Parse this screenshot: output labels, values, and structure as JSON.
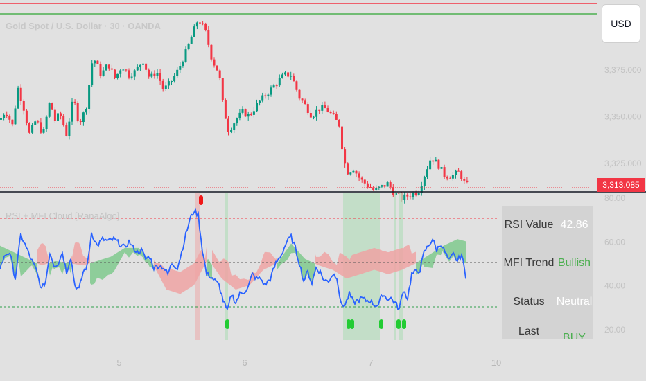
{
  "symbol_title": "Gold Spot / U.S. Dollar · 30 · OANDA",
  "currency_button": "USD",
  "current_price": "3,313.085",
  "indicator_title": "RSI + MFI Cloud [RanaAlgo]",
  "colors": {
    "bull": "#089981",
    "bear": "#f23645",
    "rsi": "#2962ff",
    "cloud_bull": "#7fc98d",
    "cloud_bear": "#eea3a3"
  },
  "stats": [
    {
      "label": "RSI Value",
      "value": "42.86",
      "value_color": "#ffffff"
    },
    {
      "label": "MFI Trend",
      "value": "Bullish",
      "value_color": "#4caf50"
    },
    {
      "label": "Status",
      "value": "Neutral",
      "value_color": "#ffffff"
    },
    {
      "label": "Last Signal",
      "value": "BUY",
      "value_color": "#4caf50"
    }
  ],
  "chart_data": [
    {
      "type": "candlestick",
      "title": "Gold Spot / U.S. Dollar · 30 · OANDA",
      "x_ticks": [
        "5",
        "6",
        "7",
        "10"
      ],
      "y_ticks": [
        "3,375.000",
        "3,350.000",
        "3,325.000"
      ],
      "ylim": [
        3305,
        3415
      ],
      "price_levels": [
        3413,
        3407
      ],
      "last_price": 3313.085,
      "close_anchors": [
        [
          0,
          3348
        ],
        [
          8,
          3353
        ],
        [
          18,
          3345
        ],
        [
          26,
          3365
        ],
        [
          36,
          3352
        ],
        [
          42,
          3340
        ],
        [
          52,
          3348
        ],
        [
          62,
          3340
        ],
        [
          72,
          3358
        ],
        [
          80,
          3347
        ],
        [
          86,
          3352
        ],
        [
          96,
          3340
        ],
        [
          106,
          3360
        ],
        [
          114,
          3346
        ],
        [
          124,
          3354
        ],
        [
          134,
          3382
        ],
        [
          146,
          3372
        ],
        [
          156,
          3378
        ],
        [
          166,
          3370
        ],
        [
          176,
          3377
        ],
        [
          186,
          3372
        ],
        [
          196,
          3374
        ],
        [
          206,
          3380
        ],
        [
          216,
          3370
        ],
        [
          226,
          3374
        ],
        [
          236,
          3364
        ],
        [
          246,
          3368
        ],
        [
          256,
          3374
        ],
        [
          266,
          3382
        ],
        [
          276,
          3392
        ],
        [
          286,
          3402
        ],
        [
          296,
          3396
        ],
        [
          306,
          3380
        ],
        [
          316,
          3373
        ],
        [
          322,
          3355
        ],
        [
          330,
          3342
        ],
        [
          340,
          3348
        ],
        [
          350,
          3352
        ],
        [
          360,
          3350
        ],
        [
          370,
          3356
        ],
        [
          380,
          3360
        ],
        [
          390,
          3364
        ],
        [
          400,
          3368
        ],
        [
          410,
          3372
        ],
        [
          420,
          3372
        ],
        [
          426,
          3366
        ],
        [
          432,
          3360
        ],
        [
          440,
          3356
        ],
        [
          450,
          3350
        ],
        [
          460,
          3354
        ],
        [
          470,
          3354
        ],
        [
          480,
          3350
        ],
        [
          490,
          3345
        ],
        [
          496,
          3326
        ],
        [
          502,
          3320
        ],
        [
          510,
          3322
        ],
        [
          520,
          3316
        ],
        [
          530,
          3313
        ],
        [
          540,
          3310
        ],
        [
          550,
          3312
        ],
        [
          560,
          3314
        ],
        [
          568,
          3309
        ],
        [
          580,
          3306
        ],
        [
          592,
          3308
        ],
        [
          604,
          3310
        ],
        [
          612,
          3318
        ],
        [
          622,
          3328
        ],
        [
          632,
          3324
        ],
        [
          642,
          3318
        ],
        [
          652,
          3318
        ],
        [
          662,
          3320
        ],
        [
          672,
          3313
        ]
      ]
    },
    {
      "type": "line",
      "title": "RSI + MFI Cloud [RanaAlgo]",
      "y_ticks": [
        "80.00",
        "60.00",
        "40.00",
        "20.00"
      ],
      "ylim": [
        20,
        80
      ],
      "levels": {
        "overbought": 70,
        "midline": 50,
        "oversold": 30
      },
      "series": [
        {
          "values_anchors": [
            [
              0,
              48
            ],
            [
              8,
              54
            ],
            [
              14,
              55
            ],
            [
              22,
              43
            ],
            [
              30,
              63
            ],
            [
              38,
              57
            ],
            [
              46,
              51
            ],
            [
              52,
              47
            ],
            [
              60,
              38
            ],
            [
              66,
              42
            ],
            [
              72,
              55
            ],
            [
              78,
              49
            ],
            [
              84,
              50
            ],
            [
              90,
              55
            ],
            [
              96,
              46
            ],
            [
              102,
              53
            ],
            [
              108,
              40
            ],
            [
              114,
              38
            ],
            [
              120,
              46
            ],
            [
              126,
              49
            ],
            [
              132,
              64
            ],
            [
              140,
              58
            ],
            [
              148,
              61
            ],
            [
              156,
              60
            ],
            [
              164,
              61
            ],
            [
              172,
              59
            ],
            [
              180,
              57
            ],
            [
              186,
              60
            ],
            [
              192,
              57
            ],
            [
              198,
              55
            ],
            [
              204,
              56
            ],
            [
              210,
              52
            ],
            [
              216,
              53
            ],
            [
              222,
              48
            ],
            [
              230,
              49
            ],
            [
              236,
              48
            ],
            [
              242,
              45
            ],
            [
              248,
              50
            ],
            [
              256,
              48
            ],
            [
              262,
              55
            ],
            [
              268,
              63
            ],
            [
              274,
              70
            ],
            [
              280,
              74
            ],
            [
              286,
              72
            ],
            [
              292,
              56
            ],
            [
              298,
              45
            ],
            [
              304,
              44
            ],
            [
              310,
              42
            ],
            [
              316,
              40
            ],
            [
              322,
              33
            ],
            [
              328,
              28
            ],
            [
              334,
              36
            ],
            [
              340,
              32
            ],
            [
              346,
              36
            ],
            [
              352,
              37
            ],
            [
              358,
              39
            ],
            [
              364,
              45
            ],
            [
              370,
              43
            ],
            [
              376,
              43
            ],
            [
              382,
              40
            ],
            [
              390,
              43
            ],
            [
              398,
              50
            ],
            [
              406,
              54
            ],
            [
              414,
              60
            ],
            [
              420,
              62
            ],
            [
              426,
              57
            ],
            [
              432,
              50
            ],
            [
              438,
              42
            ],
            [
              444,
              46
            ],
            [
              450,
              41
            ],
            [
              456,
              48
            ],
            [
              462,
              46
            ],
            [
              468,
              42
            ],
            [
              474,
              42
            ],
            [
              480,
              45
            ],
            [
              486,
              44
            ],
            [
              492,
              31
            ],
            [
              498,
              31
            ],
            [
              504,
              36
            ],
            [
              510,
              32
            ],
            [
              516,
              33
            ],
            [
              522,
              34
            ],
            [
              528,
              33
            ],
            [
              534,
              33
            ],
            [
              540,
              31
            ],
            [
              546,
              31
            ],
            [
              552,
              36
            ],
            [
              558,
              34
            ],
            [
              564,
              34
            ],
            [
              570,
              32
            ],
            [
              576,
              29
            ],
            [
              582,
              38
            ],
            [
              588,
              34
            ],
            [
              594,
              45
            ],
            [
              600,
              46
            ],
            [
              606,
              47
            ],
            [
              612,
              55
            ],
            [
              618,
              58
            ],
            [
              624,
              61
            ],
            [
              630,
              56
            ],
            [
              636,
              59
            ],
            [
              642,
              55
            ],
            [
              648,
              51
            ],
            [
              654,
              54
            ],
            [
              660,
              51
            ],
            [
              666,
              54
            ],
            [
              672,
              44
            ]
          ]
        },
        {
          "values_anchors": [
            [
              0,
              58
            ],
            [
              20,
              55
            ],
            [
              40,
              52
            ],
            [
              60,
              49
            ],
            [
              80,
              51
            ],
            [
              100,
              50
            ],
            [
              120,
              49
            ],
            [
              140,
              51
            ],
            [
              160,
              53
            ],
            [
              180,
              57
            ],
            [
              200,
              57
            ],
            [
              220,
              50
            ],
            [
              240,
              38
            ],
            [
              260,
              36
            ],
            [
              280,
              40
            ],
            [
              300,
              52
            ],
            [
              320,
              43
            ],
            [
              340,
              38
            ],
            [
              360,
              40
            ],
            [
              380,
              47
            ],
            [
              400,
              50
            ],
            [
              420,
              59
            ],
            [
              440,
              52
            ],
            [
              460,
              49
            ],
            [
              480,
              47
            ],
            [
              500,
              43
            ],
            [
              520,
              45
            ],
            [
              540,
              47
            ],
            [
              560,
              45
            ],
            [
              580,
              47
            ],
            [
              600,
              50
            ],
            [
              620,
              54
            ],
            [
              640,
              58
            ],
            [
              660,
              61
            ],
            [
              672,
              60
            ]
          ]
        }
      ],
      "buy_markers": [
        328,
        503,
        508,
        550,
        575,
        583
      ],
      "sell_markers": [
        290
      ]
    }
  ]
}
